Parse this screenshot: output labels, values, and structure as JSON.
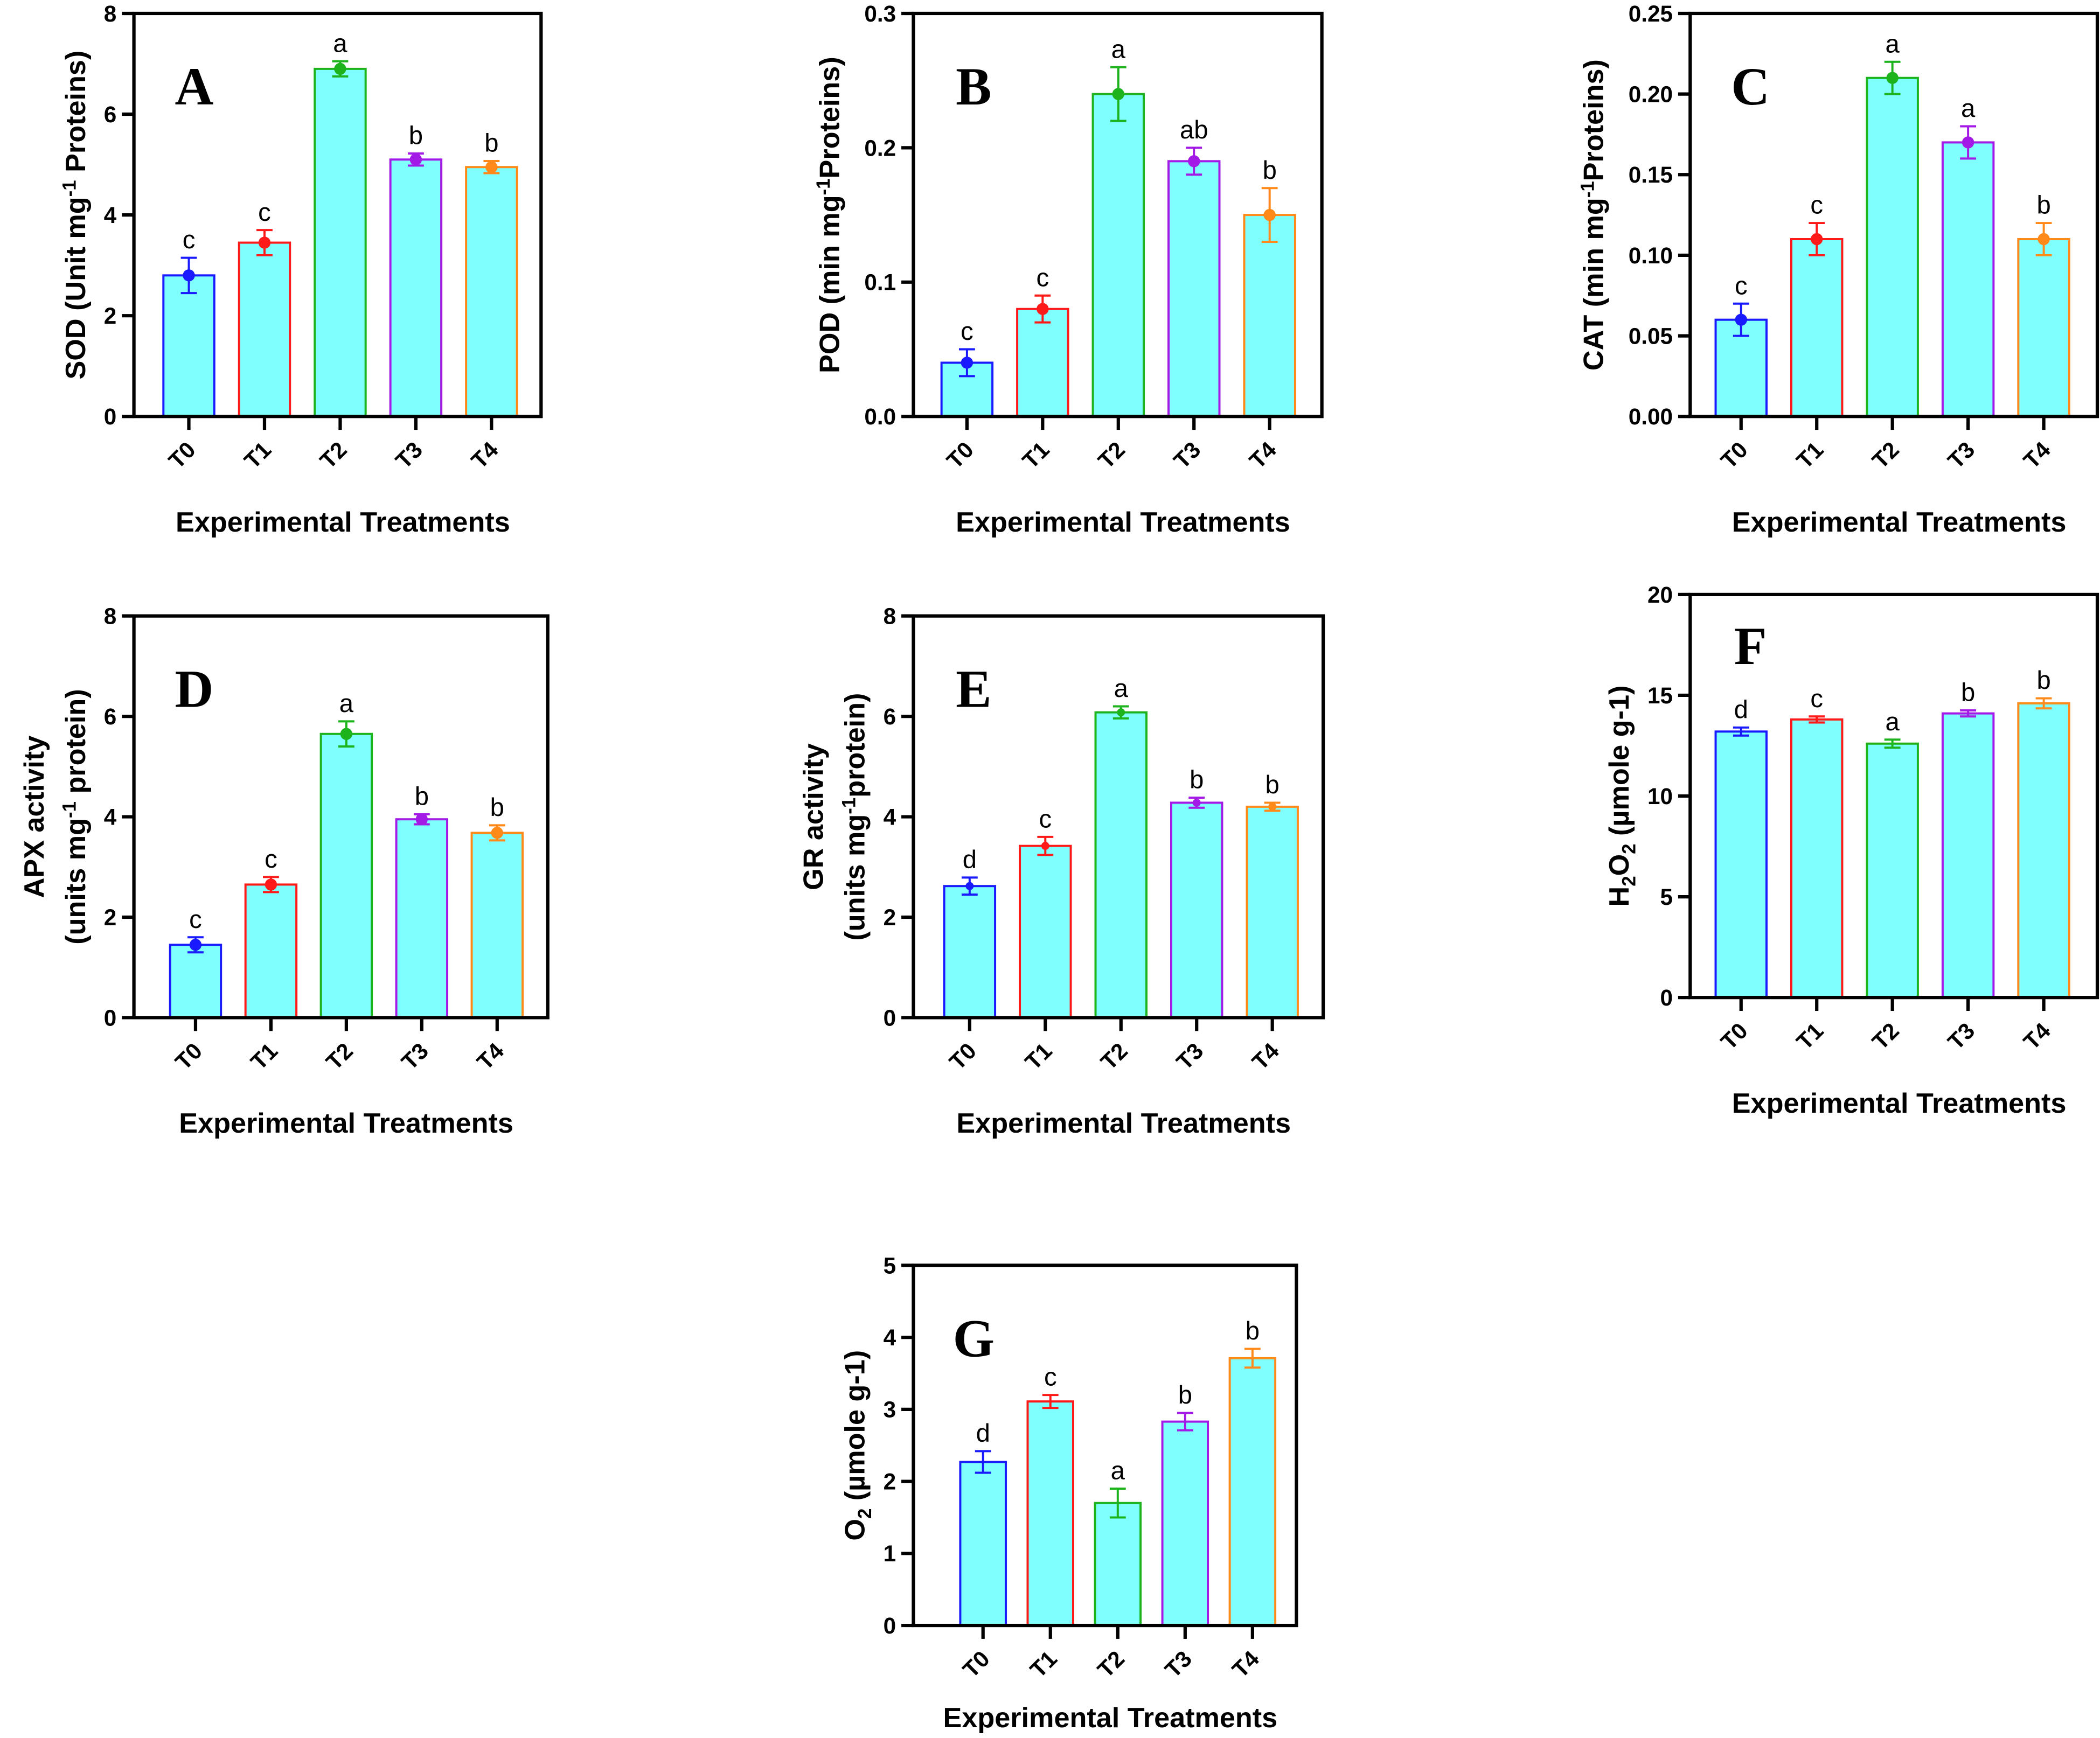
{
  "colors": {
    "fill": "#80ffff",
    "T0": "#1a1aff",
    "T1": "#ff1a1a",
    "T2": "#1db31d",
    "T3": "#a31ae6",
    "T4": "#ff8a1a",
    "axis": "#000000"
  },
  "chart_data": [
    {
      "type": "bar",
      "panel": "A",
      "categories": [
        "T0",
        "T1",
        "T2",
        "T3",
        "T4"
      ],
      "values": [
        2.8,
        3.45,
        6.9,
        5.1,
        4.95
      ],
      "errors": [
        0.35,
        0.25,
        0.15,
        0.12,
        0.12
      ],
      "letters": [
        "c",
        "c",
        "a",
        "b",
        "b"
      ],
      "points": true,
      "ylabel": [
        [
          {
            "t": "SOD (Unit mg"
          },
          {
            "t": "-1",
            "s": "sup"
          },
          {
            "t": " Proteins)"
          }
        ]
      ],
      "xlabel": "Experimental Treatments",
      "ylim": [
        0,
        8
      ],
      "yticks": [
        "0",
        "2",
        "4",
        "6",
        "8"
      ]
    },
    {
      "type": "bar",
      "panel": "B",
      "categories": [
        "T0",
        "T1",
        "T2",
        "T3",
        "T4"
      ],
      "values": [
        0.04,
        0.08,
        0.24,
        0.19,
        0.15
      ],
      "errors": [
        0.01,
        0.01,
        0.02,
        0.01,
        0.02
      ],
      "letters": [
        "c",
        "c",
        "a",
        "ab",
        "b"
      ],
      "points": true,
      "ylabel": [
        [
          {
            "t": "POD (min mg"
          },
          {
            "t": "-1",
            "s": "sup"
          },
          {
            "t": "Proteins)"
          }
        ]
      ],
      "xlabel": "Experimental Treatments",
      "ylim": [
        0,
        0.3
      ],
      "yticks": [
        "0.0",
        "0.1",
        "0.2",
        "0.3"
      ]
    },
    {
      "type": "bar",
      "panel": "C",
      "categories": [
        "T0",
        "T1",
        "T2",
        "T3",
        "T4"
      ],
      "values": [
        0.06,
        0.11,
        0.21,
        0.17,
        0.11
      ],
      "errors": [
        0.01,
        0.01,
        0.01,
        0.01,
        0.01
      ],
      "letters": [
        "c",
        "c",
        "a",
        "a",
        "b"
      ],
      "points": true,
      "ylabel": [
        [
          {
            "t": "CAT (min mg"
          },
          {
            "t": "-1",
            "s": "sup"
          },
          {
            "t": "Proteins)"
          }
        ]
      ],
      "xlabel": "Experimental Treatments",
      "ylim": [
        0,
        0.25
      ],
      "yticks": [
        "0.00",
        "0.05",
        "0.10",
        "0.15",
        "0.20",
        "0.25"
      ]
    },
    {
      "type": "bar",
      "panel": "D",
      "categories": [
        "T0",
        "T1",
        "T2",
        "T3",
        "T4"
      ],
      "values": [
        1.45,
        2.65,
        5.65,
        3.95,
        3.68
      ],
      "errors": [
        0.15,
        0.15,
        0.25,
        0.1,
        0.15
      ],
      "letters": [
        "c",
        "c",
        "a",
        "b",
        "b"
      ],
      "points": true,
      "ylabel": [
        [
          {
            "t": "APX activity"
          }
        ],
        [
          {
            "t": "(units mg"
          },
          {
            "t": "-1",
            "s": "sup"
          },
          {
            "t": " protein)"
          }
        ]
      ],
      "xlabel": "Experimental Treatments",
      "ylim": [
        0,
        8
      ],
      "yticks": [
        "0",
        "2",
        "4",
        "6",
        "8"
      ]
    },
    {
      "type": "bar",
      "panel": "E",
      "categories": [
        "T0",
        "T1",
        "T2",
        "T3",
        "T4"
      ],
      "values": [
        2.62,
        3.42,
        6.08,
        4.28,
        4.2
      ],
      "errors": [
        0.17,
        0.18,
        0.12,
        0.1,
        0.08
      ],
      "letters": [
        "d",
        "c",
        "a",
        "b",
        "b"
      ],
      "points": true,
      "ylabel": [
        [
          {
            "t": "GR activity"
          }
        ],
        [
          {
            "t": "(units mg"
          },
          {
            "t": "-1",
            "s": "sup"
          },
          {
            "t": "protein)"
          }
        ]
      ],
      "xlabel": "Experimental Treatments",
      "ylim": [
        0,
        8
      ],
      "yticks": [
        "0",
        "2",
        "4",
        "6",
        "8"
      ]
    },
    {
      "type": "bar",
      "panel": "F",
      "categories": [
        "T0",
        "T1",
        "T2",
        "T3",
        "T4"
      ],
      "values": [
        13.2,
        13.8,
        12.6,
        14.1,
        14.6
      ],
      "errors": [
        0.2,
        0.15,
        0.2,
        0.15,
        0.25
      ],
      "letters": [
        "d",
        "c",
        "a",
        "b",
        "b"
      ],
      "points": false,
      "ylabel": [
        [
          {
            "t": "H"
          },
          {
            "t": "2",
            "s": "sub"
          },
          {
            "t": "O"
          },
          {
            "t": "2",
            "s": "sub"
          },
          {
            "t": " (µmole g-1)"
          }
        ]
      ],
      "xlabel": "Experimental Treatments",
      "ylim": [
        0,
        20
      ],
      "yticks": [
        "0",
        "5",
        "10",
        "15",
        "20"
      ]
    },
    {
      "type": "bar",
      "panel": "G",
      "categories": [
        "T0",
        "T1",
        "T2",
        "T3",
        "T4"
      ],
      "values": [
        2.27,
        3.11,
        1.7,
        2.83,
        3.71
      ],
      "errors": [
        0.15,
        0.09,
        0.2,
        0.12,
        0.13
      ],
      "letters": [
        "d",
        "c",
        "a",
        "b",
        "b"
      ],
      "points": false,
      "ylabel": [
        [
          {
            "t": "O"
          },
          {
            "t": "2",
            "s": "sub"
          },
          {
            "t": " (µmole g-1)"
          }
        ]
      ],
      "xlabel": "Experimental Treatments",
      "ylim": [
        0,
        5
      ],
      "yticks": [
        "0",
        "1",
        "2",
        "3",
        "4",
        "5"
      ]
    }
  ]
}
